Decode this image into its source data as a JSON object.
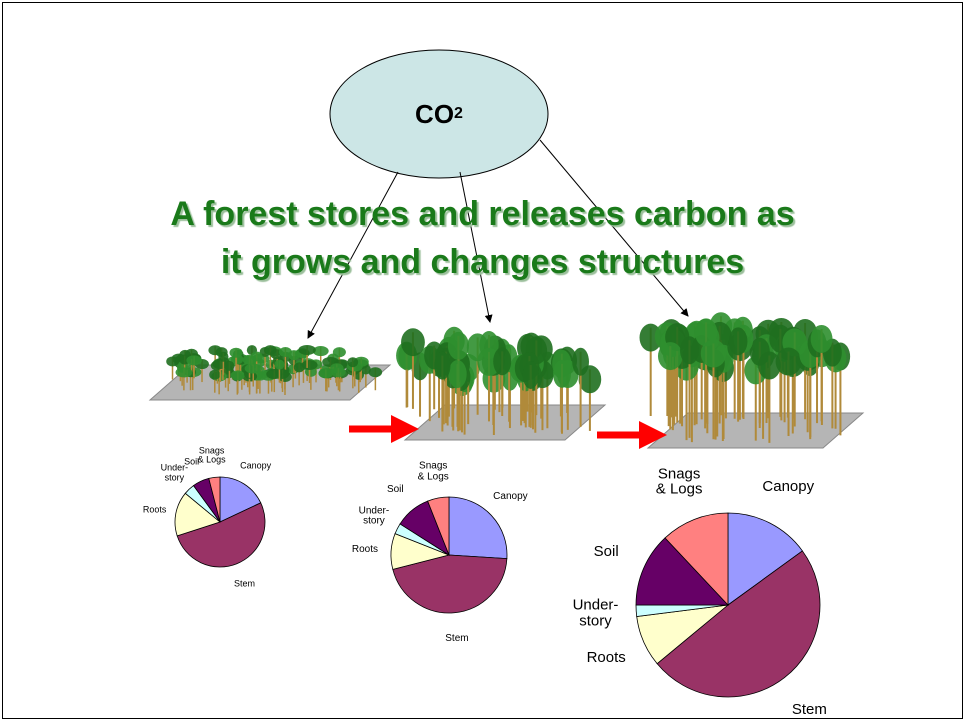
{
  "slide": {
    "bubble": {
      "text": "CO",
      "subscript": "2"
    },
    "title": [
      "A forest stores and releases carbon as",
      "it grows and changes structures"
    ]
  },
  "chart_data": [
    {
      "type": "pie",
      "categories": [
        "Canopy",
        "Stem",
        "Roots",
        "Under-\nstory",
        "Soil",
        "Snags\n& Logs"
      ],
      "values": [
        18,
        52,
        16,
        4,
        6,
        4
      ],
      "colors": [
        "#9999ff",
        "#993366",
        "#ffffcc",
        "#ccffff",
        "#660066",
        "#ff8080"
      ]
    },
    {
      "type": "pie",
      "categories": [
        "Canopy",
        "Stem",
        "Roots",
        "Under-\nstory",
        "Soil",
        "Snags\n& Logs"
      ],
      "values": [
        26,
        45,
        10,
        3,
        10,
        6
      ],
      "colors": [
        "#9999ff",
        "#993366",
        "#ffffcc",
        "#ccffff",
        "#660066",
        "#ff8080"
      ]
    },
    {
      "type": "pie",
      "categories": [
        "Canopy",
        "Stem",
        "Roots",
        "Under-\nstory",
        "Soil",
        "Snags\n& Logs"
      ],
      "values": [
        15,
        49,
        9,
        2,
        13,
        12
      ],
      "colors": [
        "#9999ff",
        "#993366",
        "#ffffcc",
        "#ccffff",
        "#660066",
        "#ff8080"
      ]
    }
  ]
}
